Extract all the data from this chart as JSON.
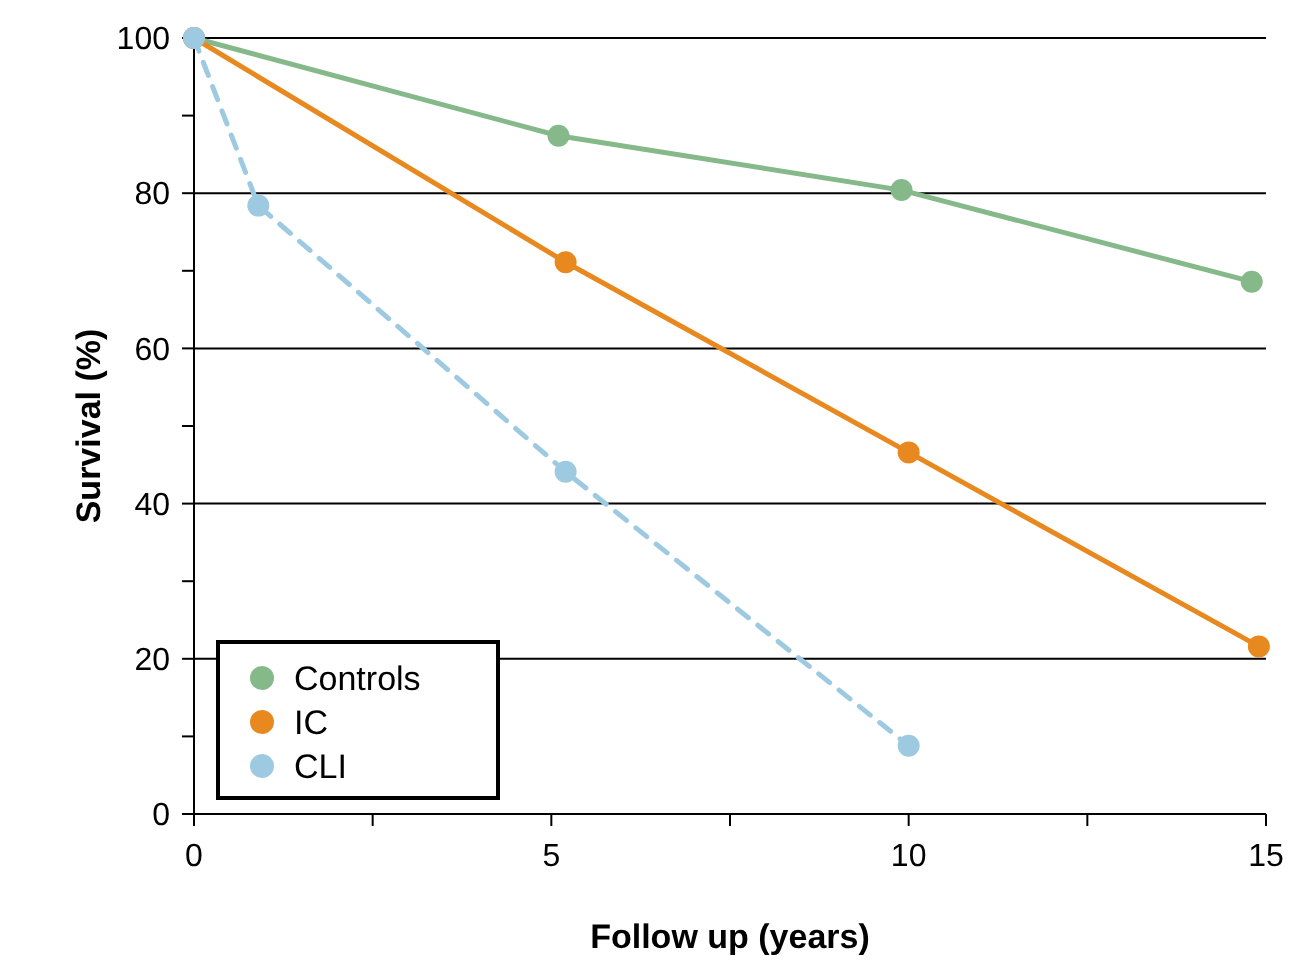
{
  "chart_data": {
    "type": "line",
    "xlabel": "Follow up (years)",
    "ylabel": "Survival (%)",
    "xlim": [
      0,
      15
    ],
    "xticks": [
      0,
      {
        "value": 2.5,
        "label": null
      },
      5,
      {
        "value": 7.5,
        "label": null
      },
      10,
      {
        "value": 12.5,
        "label": null
      },
      15
    ],
    "ylim": [
      0,
      100
    ],
    "yticks": [
      0,
      {
        "value": 10,
        "label": null
      },
      20,
      {
        "value": 30,
        "label": null
      },
      40,
      {
        "value": 50,
        "label": null
      },
      60,
      {
        "value": 70,
        "label": null
      },
      80,
      {
        "value": 90,
        "label": null
      },
      100
    ],
    "grid": "y",
    "legend": "bottom left",
    "marker": "circle",
    "line_style": "solid",
    "series": [
      {
        "name": "Controls",
        "color": "#86b98a",
        "x": [
          0,
          5.1,
          9.9,
          14.8
        ],
        "values": [
          100,
          87.4,
          80.4,
          68.6
        ]
      },
      {
        "name": "IC",
        "color": "#e8891f",
        "x": [
          0,
          5.2,
          10,
          14.9
        ],
        "values": [
          100,
          71.1,
          46.6,
          21.6
        ]
      },
      {
        "name": "CLI",
        "color": "#9ecae1",
        "x": [
          0,
          0.9,
          5.2,
          10
        ],
        "values": [
          100,
          78.4,
          44.1,
          8.8
        ],
        "line_style": "dashed"
      }
    ]
  }
}
